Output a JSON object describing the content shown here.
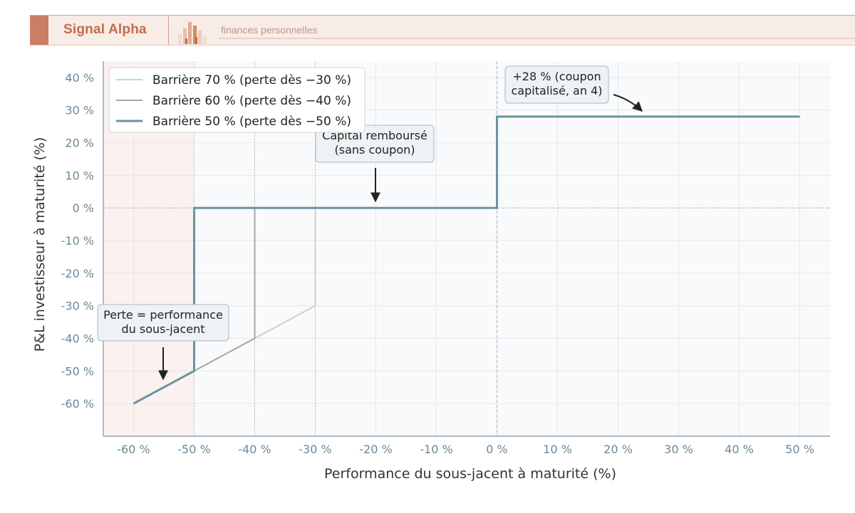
{
  "header": {
    "brand": "Signal Alpha",
    "tagline": "finances personnelles",
    "logo_icon": "bar-chart-icon"
  },
  "chart_data": {
    "type": "line",
    "xlabel": "Performance du sous-jacent à maturité (%)",
    "ylabel": "P&L investisseur à maturité (%)",
    "xlim": [
      -65,
      55
    ],
    "ylim": [
      -70,
      45
    ],
    "x_ticks": [
      -60,
      -50,
      -40,
      -30,
      -20,
      -10,
      0,
      10,
      20,
      30,
      40,
      50
    ],
    "x_tick_labels": [
      "-60 %",
      "-50 %",
      "-40 %",
      "-30 %",
      "-20 %",
      "-10 %",
      "0 %",
      "10 %",
      "20 %",
      "30 %",
      "40 %",
      "50 %"
    ],
    "y_ticks": [
      40,
      30,
      20,
      10,
      0,
      -10,
      -20,
      -30,
      -40,
      -50,
      -60
    ],
    "y_tick_labels": [
      "40 %",
      "30 %",
      "20 %",
      "10 %",
      "0 %",
      "-10 %",
      "-20 %",
      "-30 %",
      "-40 %",
      "-50 %",
      "-60 %"
    ],
    "grid": true,
    "legend_position": "top-left",
    "series": [
      {
        "name": "Barrière 70 % (perte dès −30 %)",
        "color": "#cfcfcf",
        "points": [
          [
            -60,
            -60
          ],
          [
            -30,
            -30
          ],
          [
            -30,
            0
          ],
          [
            0,
            0
          ],
          [
            0,
            28
          ],
          [
            50,
            28
          ]
        ]
      },
      {
        "name": "Barrière 60 % (perte dès −40 %)",
        "color": "#a8a8a8",
        "points": [
          [
            -60,
            -60
          ],
          [
            -40,
            -40
          ],
          [
            -40,
            0
          ],
          [
            0,
            0
          ],
          [
            0,
            28
          ],
          [
            50,
            28
          ]
        ]
      },
      {
        "name": "Barrière 50 % (perte dès −50 %)",
        "color": "#6a93a1",
        "points": [
          [
            -60,
            -60
          ],
          [
            -50,
            -50
          ],
          [
            -50,
            0
          ],
          [
            0,
            0
          ],
          [
            0,
            28
          ],
          [
            50,
            28
          ]
        ]
      }
    ],
    "reference_lines": [
      {
        "axis": "y",
        "value": 0
      },
      {
        "axis": "x",
        "value": 0
      },
      {
        "axis": "x",
        "value": -50
      },
      {
        "axis": "x",
        "value": -40
      },
      {
        "axis": "x",
        "value": -30
      }
    ],
    "shaded_region": {
      "x_from": -65,
      "x_to": -50,
      "color": "#fbf1ef"
    },
    "annotations": [
      {
        "text": [
          "+28 % (coupon",
          "capitalisé, an 4)"
        ],
        "point": [
          25,
          29.5
        ]
      },
      {
        "text": [
          "Capital remboursé",
          "(sans coupon)"
        ],
        "point": [
          -20,
          2
        ]
      },
      {
        "text": [
          "Perte = performance",
          "du sous-jacent"
        ],
        "point": [
          -55,
          -53
        ]
      }
    ]
  }
}
